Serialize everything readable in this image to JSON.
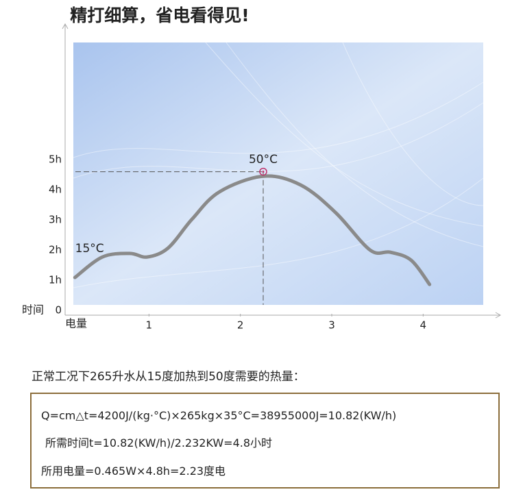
{
  "chart_data": {
    "type": "line",
    "title": "精打细算，省电看得见!",
    "x_label": "电量",
    "y_label": "时间",
    "x": [
      0.19,
      0.49,
      0.79,
      0.98,
      1.21,
      1.47,
      1.77,
      2.25,
      2.66,
      3.04,
      3.42,
      3.64,
      3.87,
      4.07
    ],
    "values": [
      1.09,
      1.77,
      1.89,
      1.77,
      2.07,
      3.02,
      3.93,
      4.45,
      4.16,
      3.25,
      2.0,
      1.93,
      1.66,
      0.86
    ],
    "color": "#8a8a8a",
    "xlim": [
      0,
      4.8
    ],
    "ylim": [
      0,
      9.5
    ],
    "xticks": [
      1,
      2,
      3,
      4
    ],
    "yticks": [
      0,
      {
        "value": 1,
        "label": "1h"
      },
      {
        "value": 2,
        "label": "2h"
      },
      {
        "value": 3,
        "label": "3h"
      },
      {
        "value": 4,
        "label": "4h"
      },
      {
        "value": 5,
        "label": "5h"
      }
    ],
    "annotations": [
      {
        "label": "15°C",
        "x": 0.35,
        "y": 2.05
      },
      {
        "label": "50°C",
        "x": 2.25,
        "y": 5.0
      }
    ],
    "peak": {
      "x": 2.25,
      "y": 4.6
    }
  },
  "text": {
    "intro": "正常工况下265升水从15度加热到50度需要的热量：",
    "lines": [
      "Q=cm△t=4200J/(kg·°C)×265kg×35°C=38955000J=10.82(KW/h)",
      "所需时间t=10.82(KW/h)/2.232KW=4.8小时",
      "所用电量=0.465W×4.8h=2.23度电"
    ]
  }
}
